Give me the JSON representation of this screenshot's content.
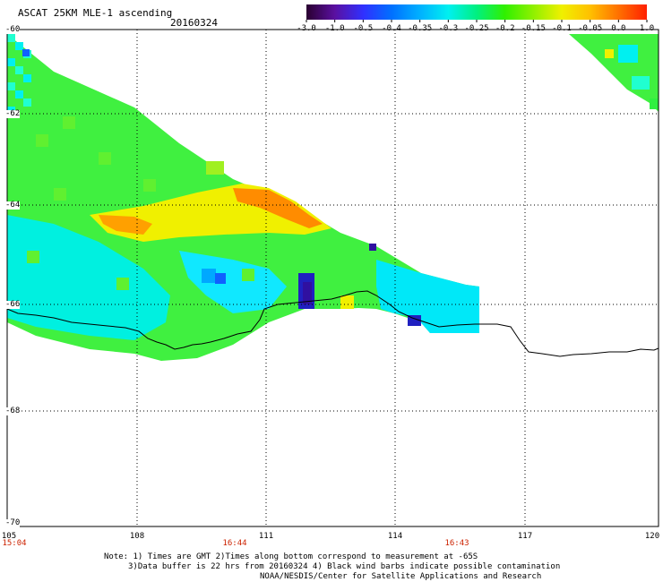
{
  "header": {
    "title": "ASCAT 25KM MLE-1 ascending",
    "date": "20160324"
  },
  "colorbar": {
    "labels": [
      "-3.0",
      "-1.0",
      "-0.5",
      "-0.4",
      "-0.35",
      "-0.3",
      "-0.25",
      "-0.2",
      "-0.15",
      "-0.1",
      "-0.05",
      "0.0",
      "1.0"
    ],
    "colors": [
      "#2a0030",
      "#5a10a0",
      "#3030ff",
      "#0070ff",
      "#00b0ff",
      "#00f0f0",
      "#00f080",
      "#30f000",
      "#90f000",
      "#f0f000",
      "#ffc000",
      "#ff7000",
      "#ff2000"
    ]
  },
  "map": {
    "lat_labels": [
      "-60",
      "-62",
      "-64",
      "-66",
      "-68",
      "-70"
    ],
    "lon_labels": [
      "105",
      "108",
      "111",
      "114",
      "117",
      "120"
    ],
    "time_labels": [
      "15:04",
      "16:44",
      "16:43"
    ],
    "lon_range": [
      105,
      120
    ],
    "lat_range": [
      -70,
      -60
    ]
  },
  "notes": {
    "line1": "Note: 1) Times are GMT 2)Times along bottom correspond to measurement at -65S",
    "line2": "3)Data buffer is 22 hrs from 20160324 4) Black wind barbs indicate possible contamination",
    "line3": "NOAA/NESDIS/Center for Satellite Applications and Research"
  }
}
